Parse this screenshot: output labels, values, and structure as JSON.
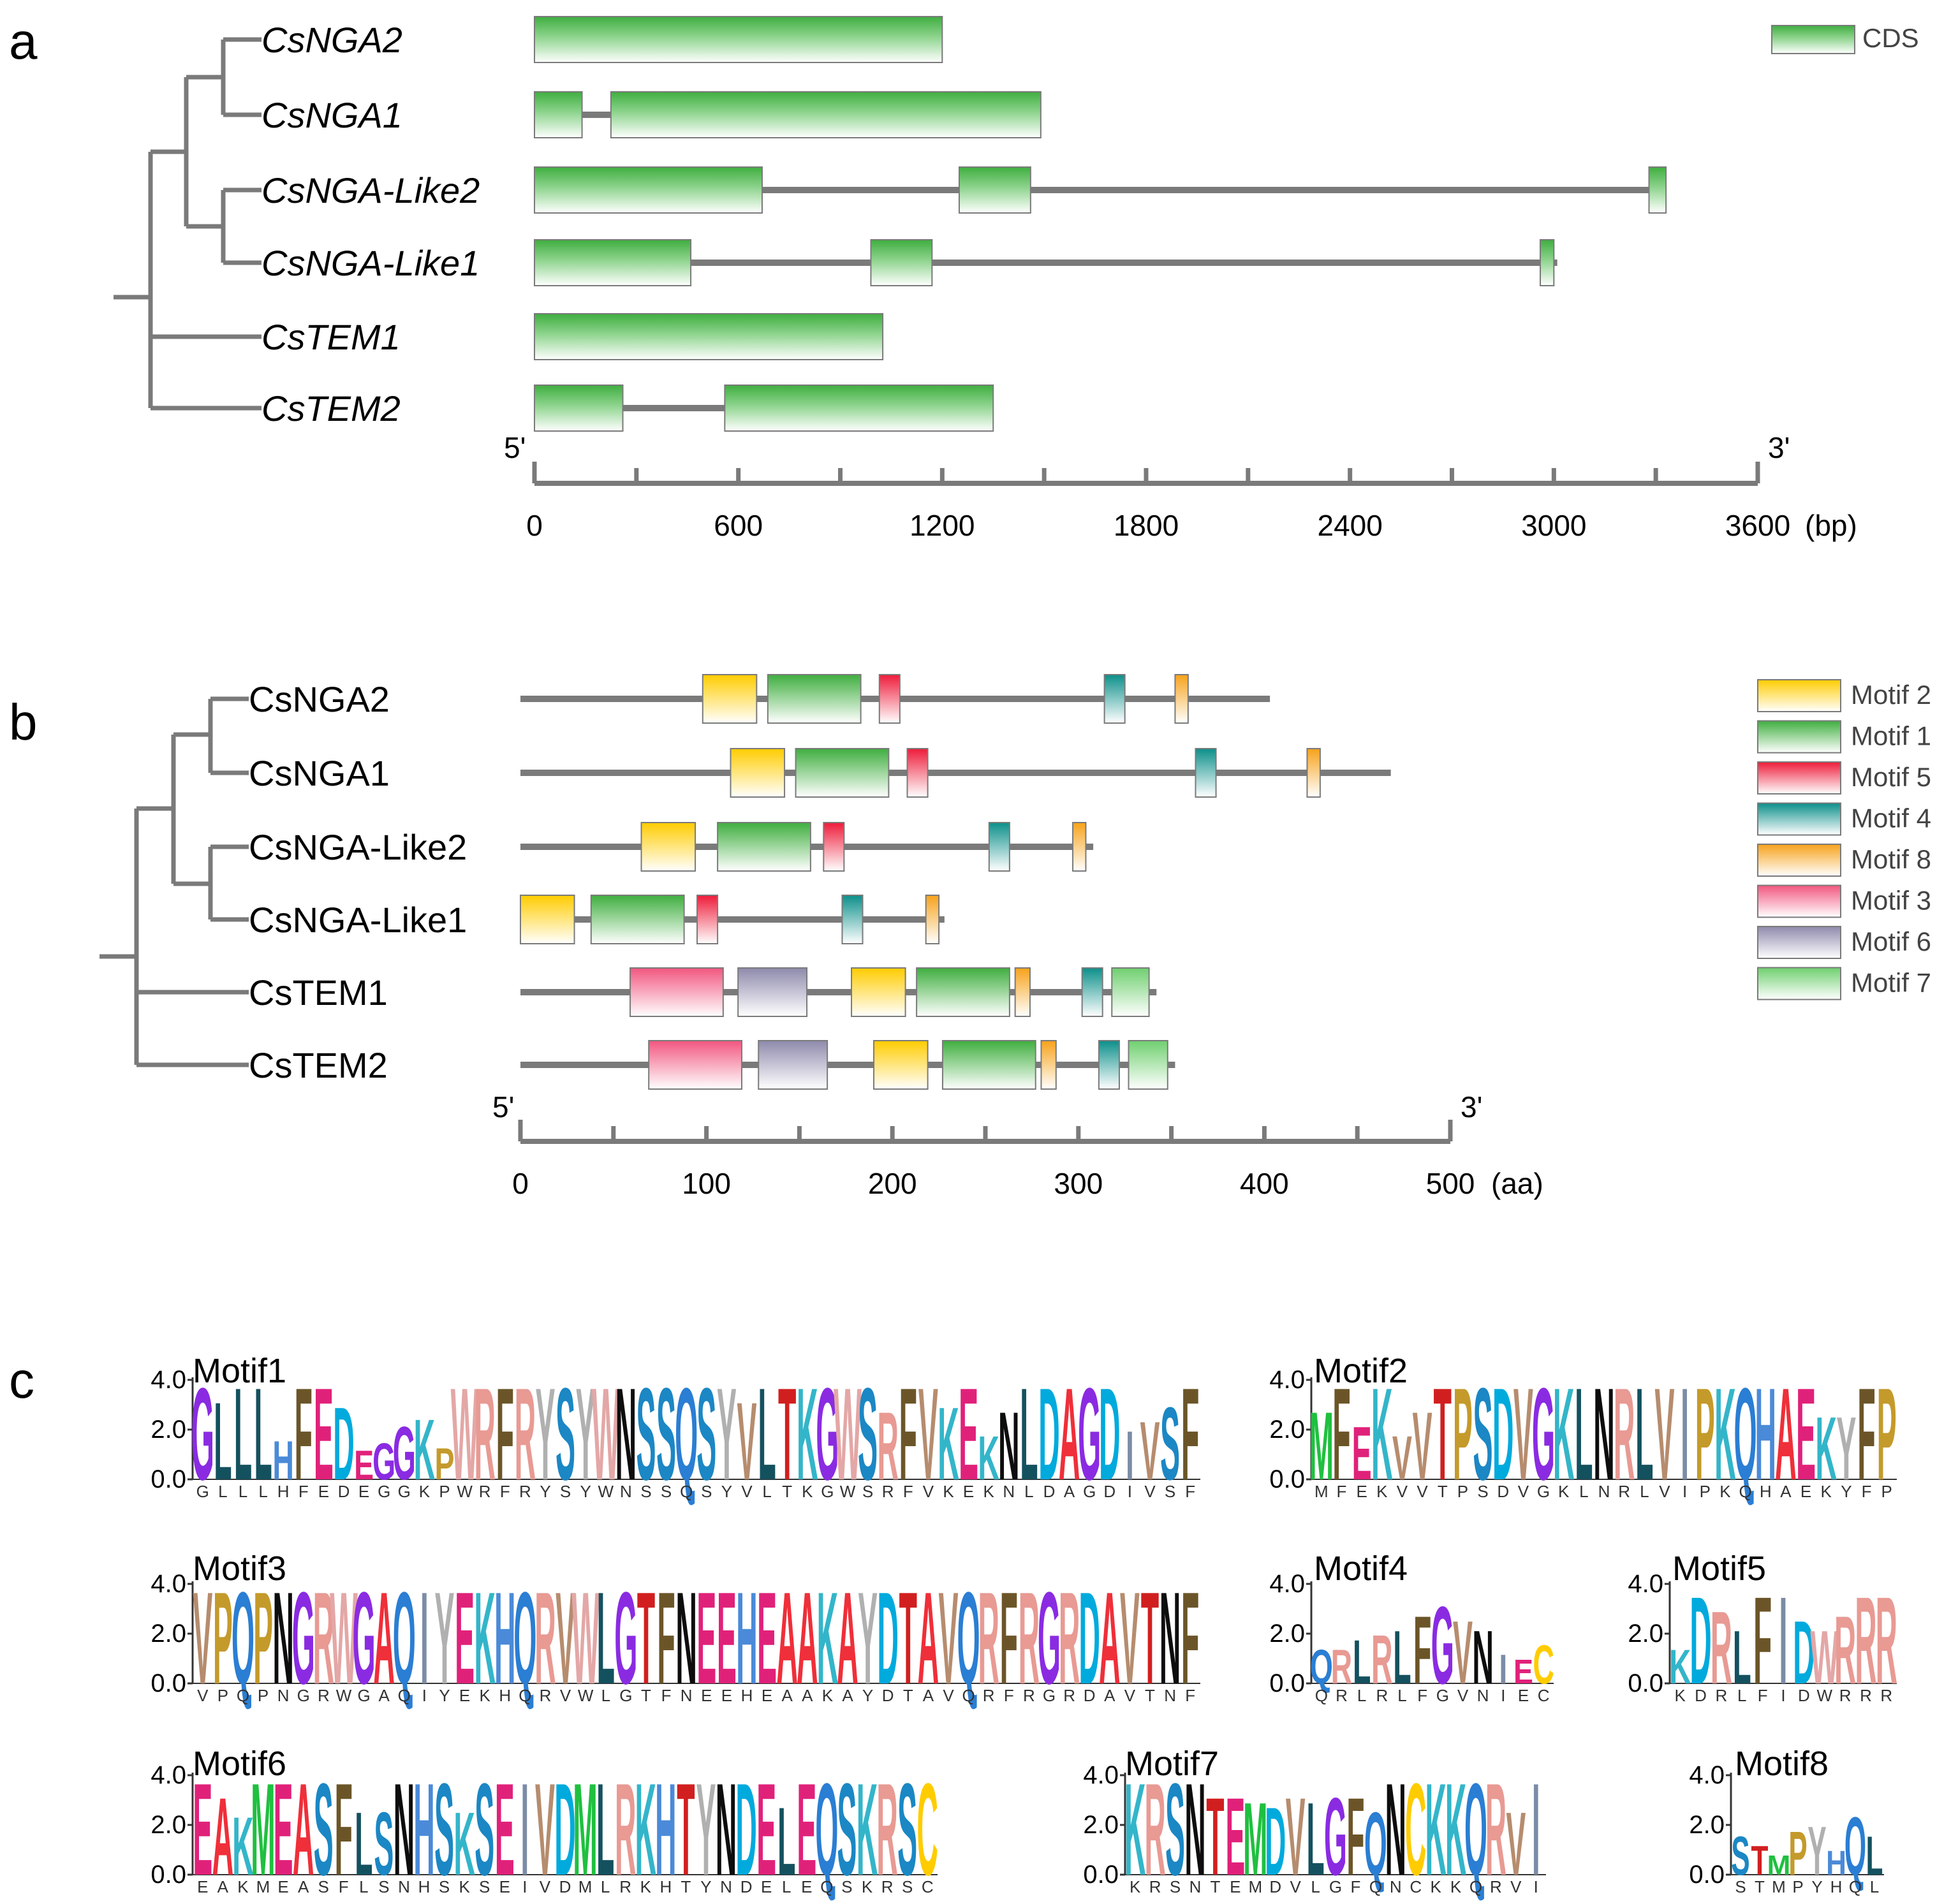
{
  "panel_a": {
    "label": "a",
    "genes": [
      {
        "name": "CsNGA2",
        "total": 1200,
        "exons": [
          [
            0,
            1200
          ]
        ]
      },
      {
        "name": "CsNGA1",
        "total": 1490,
        "exons": [
          [
            0,
            140
          ],
          [
            225,
            1490
          ]
        ]
      },
      {
        "name": "CsNGA-Like2",
        "total": 3330,
        "exons": [
          [
            0,
            670
          ],
          [
            1250,
            1460
          ],
          [
            3280,
            3330
          ]
        ]
      },
      {
        "name": "CsNGA-Like1",
        "total": 3010,
        "exons": [
          [
            0,
            460
          ],
          [
            990,
            1170
          ],
          [
            2960,
            3000
          ]
        ]
      },
      {
        "name": "CsTEM1",
        "total": 1025,
        "exons": [
          [
            0,
            1025
          ]
        ]
      },
      {
        "name": "CsTEM2",
        "total": 1350,
        "exons": [
          [
            0,
            260
          ],
          [
            560,
            1350
          ]
        ]
      }
    ],
    "legend": {
      "label": "CDS",
      "color": "#3fae3f"
    },
    "axis": {
      "start_label": "5'",
      "end_label": "3'",
      "unit_label": "(bp)",
      "max": 3600,
      "ticks": [
        "0",
        "600",
        "1200",
        "1800",
        "2400",
        "3000",
        "3600"
      ]
    }
  },
  "panel_b": {
    "label": "b",
    "genes": [
      {
        "name": "CsNGA2",
        "length": 403,
        "motifs": [
          [
            2,
            98,
            127
          ],
          [
            1,
            133,
            183
          ],
          [
            5,
            193,
            204
          ],
          [
            4,
            314,
            325
          ],
          [
            8,
            352,
            359
          ]
        ]
      },
      {
        "name": "CsNGA1",
        "length": 468,
        "motifs": [
          [
            2,
            113,
            142
          ],
          [
            1,
            148,
            198
          ],
          [
            5,
            208,
            219
          ],
          [
            4,
            363,
            374
          ],
          [
            8,
            423,
            430
          ]
        ]
      },
      {
        "name": "CsNGA-Like2",
        "length": 308,
        "motifs": [
          [
            2,
            65,
            94
          ],
          [
            1,
            106,
            156
          ],
          [
            5,
            163,
            174
          ],
          [
            4,
            252,
            263
          ],
          [
            8,
            297,
            304
          ]
        ]
      },
      {
        "name": "CsNGA-Like1",
        "length": 228,
        "motifs": [
          [
            2,
            0,
            29
          ],
          [
            1,
            38,
            88
          ],
          [
            5,
            95,
            106
          ],
          [
            4,
            173,
            184
          ],
          [
            8,
            218,
            225
          ]
        ]
      },
      {
        "name": "CsTEM1",
        "length": 342,
        "motifs": [
          [
            3,
            59,
            109
          ],
          [
            6,
            117,
            154
          ],
          [
            2,
            178,
            207
          ],
          [
            1,
            213,
            263
          ],
          [
            8,
            266,
            274
          ],
          [
            4,
            302,
            313
          ],
          [
            7,
            318,
            338
          ]
        ]
      },
      {
        "name": "CsTEM2",
        "length": 352,
        "motifs": [
          [
            3,
            69,
            119
          ],
          [
            6,
            128,
            165
          ],
          [
            2,
            190,
            219
          ],
          [
            1,
            227,
            277
          ],
          [
            8,
            280,
            288
          ],
          [
            4,
            311,
            322
          ],
          [
            7,
            327,
            348
          ]
        ]
      }
    ],
    "legend": [
      {
        "motif": 2,
        "label": "Motif 2",
        "color": "#ffcc00"
      },
      {
        "motif": 1,
        "label": "Motif 1",
        "color": "#3fae3f"
      },
      {
        "motif": 5,
        "label": "Motif 5",
        "color": "#ee1c3a"
      },
      {
        "motif": 4,
        "label": "Motif 4",
        "color": "#0c8f8a"
      },
      {
        "motif": 8,
        "label": "Motif 8",
        "color": "#f7a21b"
      },
      {
        "motif": 3,
        "label": "Motif 3",
        "color": "#f2567f"
      },
      {
        "motif": 6,
        "label": "Motif 6",
        "color": "#8e8aac"
      },
      {
        "motif": 7,
        "label": "Motif 7",
        "color": "#6fcf6f"
      }
    ],
    "axis": {
      "start_label": "5'",
      "end_label": "3'",
      "unit_label": "(aa)",
      "max": 500,
      "ticks": [
        "0",
        "100",
        "200",
        "300",
        "400",
        "500"
      ]
    }
  },
  "panel_c": {
    "label": "c",
    "y_ticks": [
      "4.0",
      "2.0",
      "0.0"
    ],
    "motifs": [
      {
        "title": "Motif1",
        "seq": "GLLLHFEDEGGKPWRFRYSYWNSSQSYVLTKGWSRFVKEKNLDAGDIVSF",
        "h": [
          3.8,
          3.2,
          3.8,
          3.8,
          1.6,
          3.8,
          3.8,
          3.0,
          1.2,
          1.5,
          2.2,
          2.5,
          1.3,
          3.8,
          3.8,
          3.8,
          3.8,
          3.8,
          3.8,
          3.8,
          3.8,
          3.8,
          3.8,
          3.8,
          3.8,
          3.8,
          3.8,
          3.2,
          3.8,
          3.8,
          3.8,
          3.8,
          3.8,
          3.8,
          2.8,
          3.8,
          3.8,
          3.0,
          3.8,
          1.8,
          2.8,
          3.8,
          3.8,
          3.8,
          3.8,
          3.8,
          2.0,
          2.4,
          3.0,
          3.8
        ]
      },
      {
        "title": "Motif2",
        "seq": "MFEKVVTPSDVGKLNRLVIPKQHAEKYFP",
        "h": [
          2.8,
          3.8,
          2.2,
          3.8,
          1.8,
          2.8,
          3.8,
          3.8,
          3.8,
          3.8,
          3.8,
          3.8,
          3.8,
          3.8,
          3.8,
          3.8,
          3.8,
          3.8,
          3.8,
          3.8,
          3.8,
          3.8,
          3.8,
          3.8,
          3.8,
          2.6,
          2.6,
          3.8,
          3.8
        ]
      },
      {
        "title": "Motif3",
        "seq": "VPQPNGRWGAQIYEKHQRVWLGTFNEEHEAAKAYDTAVQRFRGRDAVTNF",
        "h": [
          3.8,
          3.8,
          3.8,
          3.8,
          3.8,
          3.8,
          3.8,
          3.8,
          3.8,
          3.8,
          3.8,
          3.8,
          3.8,
          3.8,
          3.8,
          3.8,
          3.8,
          3.8,
          3.8,
          3.8,
          3.8,
          3.8,
          3.8,
          3.8,
          3.8,
          3.8,
          3.8,
          3.8,
          3.8,
          3.8,
          3.8,
          3.8,
          3.8,
          3.8,
          3.8,
          3.8,
          3.8,
          3.8,
          3.8,
          3.8,
          3.8,
          3.8,
          3.8,
          3.8,
          3.8,
          3.8,
          3.8,
          3.8,
          3.8,
          3.8
        ]
      },
      {
        "title": "Motif4",
        "seq": "QRLRLFGVNIEC",
        "h": [
          1.4,
          1.4,
          1.8,
          2.0,
          2.2,
          2.8,
          3.2,
          2.6,
          2.2,
          1.2,
          1.0,
          1.6
        ]
      },
      {
        "title": "Motif5",
        "seq": "KDRLFIDWRRR",
        "h": [
          1.4,
          3.6,
          3.0,
          2.2,
          3.6,
          3.6,
          2.6,
          2.2,
          2.8,
          3.6,
          3.6
        ]
      },
      {
        "title": "Motif6",
        "seq": "EAKMEASFLSNHSKSEIVDMLRKHTYNDELEQSKRSC",
        "h": [
          3.8,
          3.2,
          2.4,
          3.8,
          3.8,
          3.8,
          3.8,
          3.8,
          2.6,
          2.6,
          3.8,
          3.8,
          3.8,
          2.6,
          3.8,
          3.8,
          3.8,
          3.8,
          3.8,
          3.8,
          3.8,
          3.8,
          3.8,
          3.8,
          3.8,
          3.8,
          3.8,
          3.8,
          3.8,
          2.8,
          3.8,
          3.8,
          3.8,
          3.8,
          3.8,
          3.8,
          3.8
        ]
      },
      {
        "title": "Motif7",
        "seq": "KRSNTEMDVLGFQNCKKQRVI",
        "h": [
          3.8,
          3.8,
          3.8,
          3.8,
          3.2,
          3.2,
          3.0,
          2.8,
          3.2,
          3.0,
          3.2,
          3.2,
          2.6,
          3.8,
          3.8,
          3.8,
          3.8,
          3.8,
          3.8,
          2.6,
          3.8
        ]
      },
      {
        "title": "Motif8",
        "seq": "STMPYHQL",
        "h": [
          1.6,
          1.2,
          0.8,
          1.8,
          2.0,
          1.0,
          2.4,
          1.6
        ]
      }
    ]
  },
  "letter_colors": {
    "A": "#ef2f39",
    "C": "#ffcc00",
    "D": "#00aadd",
    "E": "#e0217a",
    "F": "#6b5528",
    "G": "#8a2be2",
    "H": "#4a8ad8",
    "I": "#7c8ca6",
    "K": "#33b5c9",
    "L": "#14515f",
    "M": "#1fc03f",
    "N": "#0d0d0d",
    "P": "#c49a2b",
    "Q": "#2a7ed3",
    "R": "#e89a93",
    "S": "#1b87c4",
    "T": "#d11f1f",
    "V": "#b68c6e",
    "W": "#e3a7a6",
    "Y": "#b0b0b0"
  }
}
